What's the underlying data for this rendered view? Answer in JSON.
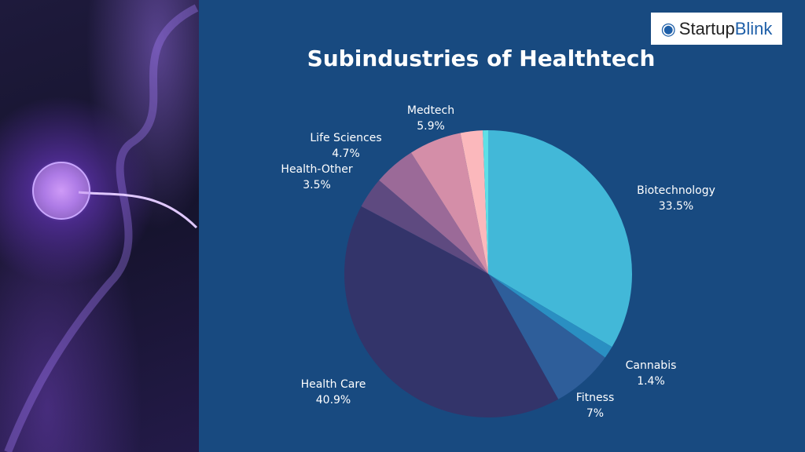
{
  "brand": {
    "logo_text_1": "Startup",
    "logo_text_2": "Blink"
  },
  "chart_data": {
    "type": "pie",
    "title": "Subindustries of Healthtech",
    "start": "top",
    "direction": "clockwise",
    "slices": [
      {
        "name": "Biotechnology",
        "value": 33.5,
        "label": "33.5%",
        "color": "#42b8d8"
      },
      {
        "name": "Cannabis",
        "value": 1.4,
        "label": "1.4%",
        "color": "#2a8fc2"
      },
      {
        "name": "Fitness",
        "value": 7,
        "label": "7%",
        "color": "#2e5e9a"
      },
      {
        "name": "Health Care",
        "value": 40.9,
        "label": "40.9%",
        "color": "#33346a"
      },
      {
        "name": "Health-Other",
        "value": 3.5,
        "label": "3.5%",
        "color": "#5e4a80"
      },
      {
        "name": "Life Sciences",
        "value": 4.7,
        "label": "4.7%",
        "color": "#9b6a98"
      },
      {
        "name": "Medtech",
        "value": 5.9,
        "label": "5.9%",
        "color": "#d48ea8"
      },
      {
        "value": 2.5,
        "color": "#fbb8bc"
      },
      {
        "value": 0.6,
        "color": "#5ee0e6"
      }
    ]
  }
}
